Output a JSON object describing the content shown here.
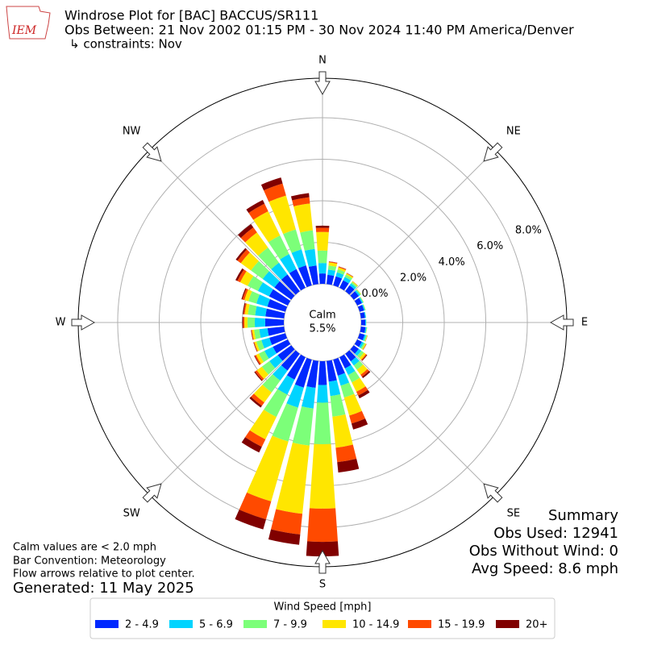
{
  "logo_text": "IEM",
  "chart_data": {
    "type": "windrose",
    "title": "Windrose Plot for [BAC] BACCUS/SR111",
    "subtitle": "Obs Between: 21 Nov 2002 01:15 PM - 30 Nov 2024 11:40 PM America/Denver",
    "constraints": "↳ constraints: Nov",
    "calm_label": "Calm",
    "calm_value": "5.5%",
    "compass_labels": [
      "N",
      "NE",
      "E",
      "SE",
      "S",
      "SW",
      "W",
      "NW"
    ],
    "x": [
      0,
      10,
      20,
      30,
      40,
      50,
      60,
      70,
      80,
      90,
      100,
      110,
      120,
      130,
      140,
      150,
      160,
      170,
      180,
      190,
      200,
      210,
      220,
      230,
      240,
      250,
      260,
      270,
      280,
      290,
      300,
      310,
      320,
      330,
      340,
      350
    ],
    "ylim": [
      0,
      9.9
    ],
    "yticks": [
      {
        "value": 0,
        "label": "0.0%"
      },
      {
        "value": 2,
        "label": "2.0%"
      },
      {
        "value": 4,
        "label": "4.0%"
      },
      {
        "value": 6,
        "label": "6.0%"
      },
      {
        "value": 8,
        "label": "8.0%"
      }
    ],
    "grid": true,
    "legend_title": "Wind Speed [mph]",
    "series": [
      {
        "name": "2 - 4.9",
        "color": "#0028ff",
        "values": [
          0.5,
          0.45,
          0.45,
          0.4,
          0.35,
          0.3,
          0.25,
          0.22,
          0.2,
          0.2,
          0.22,
          0.25,
          0.25,
          0.3,
          0.45,
          0.6,
          0.8,
          1.0,
          1.15,
          1.3,
          1.4,
          1.2,
          1.0,
          0.8,
          0.8,
          0.8,
          0.8,
          0.9,
          0.9,
          0.9,
          1.0,
          1.0,
          1.0,
          1.0,
          1.0,
          0.9
        ]
      },
      {
        "name": "5 - 6.9",
        "color": "#00d4ff",
        "values": [
          0.5,
          0.25,
          0.2,
          0.18,
          0.12,
          0.08,
          0.06,
          0.05,
          0.04,
          0.04,
          0.05,
          0.07,
          0.1,
          0.15,
          0.25,
          0.35,
          0.5,
          0.7,
          0.85,
          1.0,
          1.0,
          0.8,
          0.6,
          0.5,
          0.45,
          0.4,
          0.4,
          0.5,
          0.5,
          0.55,
          0.6,
          0.7,
          0.7,
          0.8,
          0.8,
          0.8
        ]
      },
      {
        "name": "7 - 9.9",
        "color": "#7cff79",
        "values": [
          0.6,
          0.2,
          0.15,
          0.12,
          0.08,
          0.05,
          0.03,
          0.02,
          0.01,
          0.01,
          0.02,
          0.05,
          0.08,
          0.15,
          0.25,
          0.4,
          0.6,
          1.0,
          2.0,
          1.8,
          1.7,
          1.2,
          0.7,
          0.45,
          0.3,
          0.25,
          0.25,
          0.35,
          0.35,
          0.4,
          0.55,
          0.7,
          0.9,
          1.0,
          1.0,
          0.9
        ]
      },
      {
        "name": "10 - 14.9",
        "color": "#ffe600",
        "values": [
          0.9,
          0.15,
          0.1,
          0.07,
          0.04,
          0.02,
          0.01,
          0.01,
          0,
          0,
          0.01,
          0.02,
          0.05,
          0.12,
          0.3,
          0.5,
          0.9,
          1.5,
          3.1,
          3.3,
          3.0,
          1.2,
          0.6,
          0.3,
          0.15,
          0.1,
          0.1,
          0.15,
          0.15,
          0.2,
          0.4,
          0.6,
          0.9,
          1.3,
          1.7,
          1.3
        ]
      },
      {
        "name": "15 - 19.9",
        "color": "#ff4a00",
        "values": [
          0.2,
          0.04,
          0.04,
          0.02,
          0.01,
          0,
          0,
          0,
          0,
          0,
          0,
          0.01,
          0.01,
          0.05,
          0.12,
          0.2,
          0.4,
          0.7,
          1.6,
          1.0,
          0.9,
          0.4,
          0.2,
          0.1,
          0.07,
          0.03,
          0.03,
          0.06,
          0.06,
          0.1,
          0.15,
          0.2,
          0.3,
          0.4,
          0.6,
          0.3
        ]
      },
      {
        "name": "20+",
        "color": "#800000",
        "values": [
          0.1,
          0.01,
          0.01,
          0.01,
          0,
          0,
          0,
          0,
          0,
          0,
          0,
          0,
          0.01,
          0.03,
          0.08,
          0.15,
          0.3,
          0.5,
          0.7,
          0.5,
          0.5,
          0.3,
          0.1,
          0.05,
          0.03,
          0.02,
          0.02,
          0.04,
          0.04,
          0.05,
          0.1,
          0.1,
          0.2,
          0.2,
          0.3,
          0.2
        ]
      }
    ],
    "summary": [
      "Summary",
      "Obs Used: 12941",
      "Obs Without Wind: 0",
      "Avg Speed: 8.6 mph"
    ],
    "notes": [
      "Calm values are < 2.0 mph",
      "Bar Convention: Meteorology",
      "Flow arrows relative to plot center."
    ],
    "generated": "Generated: 11 May 2025"
  }
}
